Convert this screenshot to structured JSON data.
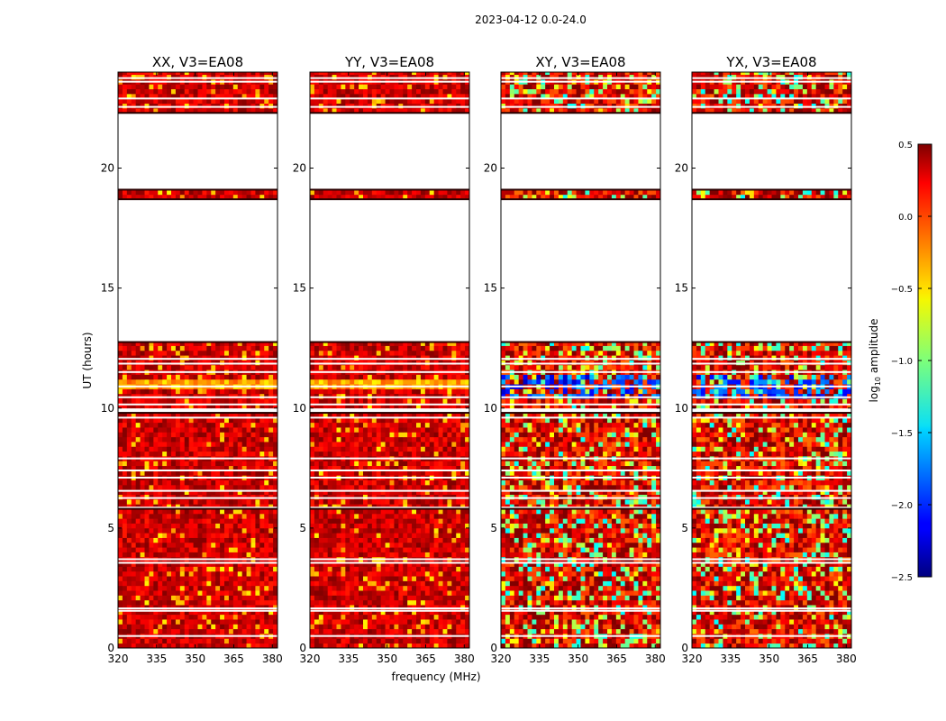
{
  "chart_data": {
    "type": "heatmap",
    "suptitle": "2023-04-12 0.0-24.0",
    "xlabel": "frequency (MHz)",
    "ylabel": "UT (hours)",
    "xlim": [
      320,
      382
    ],
    "ylim": [
      0,
      24
    ],
    "x_ticks": [
      320,
      335,
      350,
      365,
      380
    ],
    "y_ticks": [
      0,
      5,
      10,
      15,
      20
    ],
    "panels": [
      {
        "title": "XX, V3=EA08",
        "style": "auto"
      },
      {
        "title": "YY, V3=EA08",
        "style": "auto"
      },
      {
        "title": "XY, V3=EA08",
        "style": "cross"
      },
      {
        "title": "YX, V3=EA08",
        "style": "cross"
      }
    ],
    "colorbar": {
      "label_prefix": "log",
      "label_subscript": "10",
      "label_suffix": " amplitude",
      "vmin": -2.5,
      "vmax": 0.5,
      "ticks": [
        0.5,
        0.0,
        -0.5,
        -1.0,
        -1.5,
        -2.0,
        -2.5
      ],
      "tick_labels": [
        "0.5",
        "0.0",
        "−0.5",
        "−1.0",
        "−1.5",
        "−2.0",
        "−2.5"
      ],
      "colormap": "jet"
    },
    "data_segments_hours": [
      [
        0.0,
        1.8
      ],
      [
        1.8,
        5.8
      ],
      [
        5.8,
        9.8
      ],
      [
        10.0,
        12.75
      ],
      [
        18.7,
        19.1
      ],
      [
        22.3,
        24.0
      ]
    ],
    "flagged_gaps_hours": [
      [
        12.75,
        18.7
      ],
      [
        19.1,
        22.3
      ]
    ],
    "flagged_lines_hours": [
      0.5,
      1.55,
      1.65,
      3.55,
      3.7,
      5.85,
      6.25,
      6.55,
      7.1,
      7.4,
      7.9,
      9.6,
      9.85,
      10.15,
      10.45,
      10.9,
      11.5,
      11.85,
      12.05,
      22.55,
      22.9,
      23.6,
      23.75
    ]
  }
}
